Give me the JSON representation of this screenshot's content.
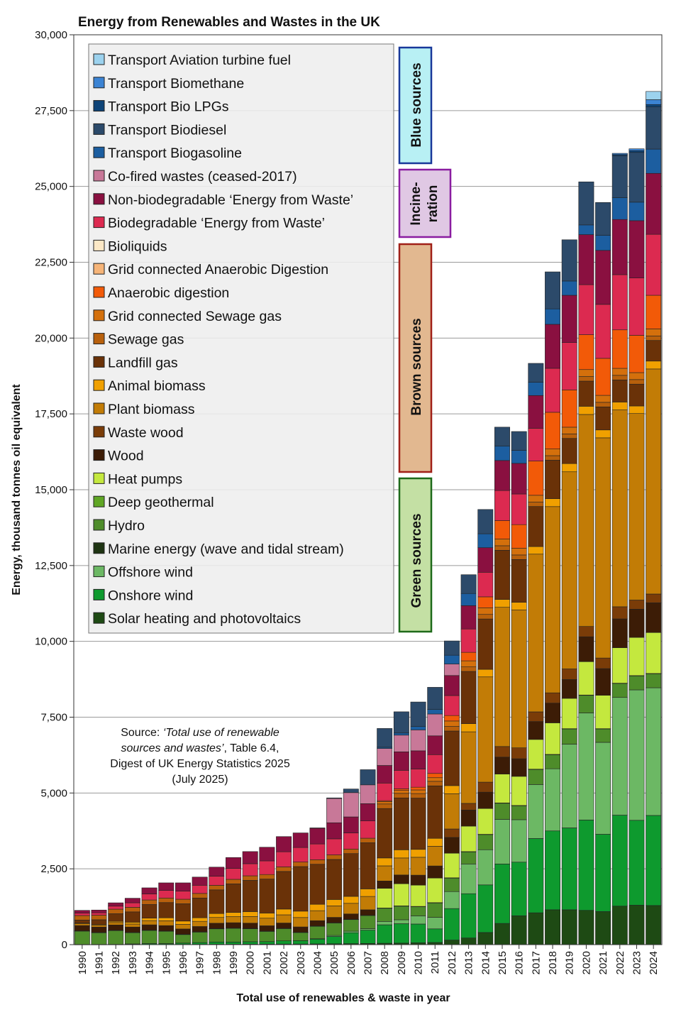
{
  "chart_data": {
    "type": "bar",
    "stacked": true,
    "title": "Energy from Renewables and Wastes in the UK",
    "xlabel": "Total use of renewables & waste in year",
    "ylabel": "Energy, thousand tonnes oil equivalent",
    "ylim": [
      0,
      30000
    ],
    "yticks": [
      0,
      2500,
      5000,
      7500,
      10000,
      12500,
      15000,
      17500,
      20000,
      22500,
      25000,
      27500,
      30000
    ],
    "ytick_labels": [
      "0",
      "2,500",
      "5,000",
      "7,500",
      "10,000",
      "12,500",
      "15,000",
      "17,500",
      "20,000",
      "22,500",
      "25,000",
      "27,500",
      "30,000"
    ],
    "grid": true,
    "legend_position": "top-left",
    "categories": [
      "1990",
      "1991",
      "1992",
      "1993",
      "1994",
      "1995",
      "1996",
      "1997",
      "1998",
      "1999",
      "2000",
      "2001",
      "2002",
      "2003",
      "2004",
      "2005",
      "2006",
      "2007",
      "2008",
      "2009",
      "2010",
      "2011",
      "2012",
      "2013",
      "2014",
      "2015",
      "2016",
      "2017",
      "2018",
      "2019",
      "2020",
      "2021",
      "2022",
      "2023",
      "2024"
    ],
    "series": [
      {
        "name": "Solar heating and photovoltaics",
        "color": "#1e4a14",
        "values": [
          5,
          5,
          5,
          6,
          7,
          8,
          9,
          10,
          12,
          13,
          15,
          17,
          19,
          21,
          24,
          28,
          33,
          38,
          45,
          50,
          60,
          70,
          150,
          220,
          400,
          700,
          950,
          1050,
          1150,
          1150,
          1130,
          1090,
          1270,
          1300,
          1290
        ]
      },
      {
        "name": "Onshore wind",
        "color": "#0e9a2e",
        "values": [
          1,
          1,
          3,
          18,
          30,
          28,
          42,
          57,
          75,
          73,
          81,
          82,
          105,
          110,
          165,
          240,
          360,
          440,
          610,
          640,
          620,
          450,
          1040,
          1460,
          1570,
          1960,
          1770,
          2450,
          2600,
          2700,
          2980,
          2550,
          3000,
          2800,
          2970
        ]
      },
      {
        "name": "Offshore wind",
        "color": "#6cb864",
        "values": [
          0,
          0,
          0,
          0,
          0,
          0,
          0,
          0,
          0,
          0,
          0,
          0,
          0,
          0,
          5,
          35,
          50,
          50,
          110,
          130,
          270,
          380,
          560,
          980,
          1160,
          1470,
          1400,
          1780,
          2050,
          2760,
          3530,
          3030,
          3880,
          4300,
          4210
        ]
      },
      {
        "name": "Marine energy (wave and tidal stream)",
        "color": "#1e3412",
        "values": [
          0,
          0,
          0,
          0,
          0,
          0,
          0,
          0,
          0,
          0,
          0,
          0,
          0,
          0,
          0,
          0,
          0,
          0,
          0,
          0,
          0,
          0,
          0,
          0,
          0,
          0,
          0,
          0,
          0,
          0,
          0,
          0,
          0,
          0,
          0
        ]
      },
      {
        "name": "Hydro",
        "color": "#4e8c2a",
        "values": [
          448,
          396,
          465,
          380,
          440,
          415,
          290,
          355,
          443,
          461,
          437,
          347,
          413,
          277,
          420,
          420,
          393,
          440,
          442,
          457,
          310,
          484,
          453,
          407,
          507,
          542,
          468,
          505,
          472,
          510,
          590,
          450,
          470,
          470,
          470
        ]
      },
      {
        "name": "Deep geothermal",
        "color": "#5fa624",
        "values": [
          1,
          1,
          1,
          1,
          1,
          1,
          1,
          1,
          1,
          1,
          1,
          1,
          1,
          1,
          1,
          1,
          1,
          1,
          1,
          1,
          1,
          1,
          1,
          1,
          1,
          1,
          1,
          1,
          1,
          1,
          1,
          1,
          1,
          1,
          1
        ]
      },
      {
        "name": "Heat pumps",
        "color": "#c4e83e",
        "values": [
          0,
          0,
          0,
          0,
          0,
          0,
          0,
          0,
          0,
          0,
          0,
          0,
          0,
          0,
          0,
          0,
          0,
          0,
          650,
          730,
          700,
          810,
          810,
          840,
          850,
          950,
          960,
          980,
          1040,
          1000,
          1100,
          1100,
          1170,
          1260,
          1350
        ]
      },
      {
        "name": "Wood",
        "color": "#3c1c06",
        "values": [
          175,
          175,
          175,
          175,
          175,
          175,
          175,
          175,
          175,
          175,
          175,
          175,
          175,
          175,
          175,
          175,
          175,
          180,
          240,
          290,
          330,
          400,
          520,
          530,
          540,
          560,
          580,
          590,
          650,
          620,
          820,
          880,
          950,
          930,
          980
        ]
      },
      {
        "name": "Waste wood",
        "color": "#7a3c08",
        "values": [
          0,
          0,
          0,
          0,
          0,
          0,
          0,
          0,
          0,
          0,
          0,
          0,
          0,
          0,
          0,
          0,
          0,
          0,
          0,
          0,
          0,
          0,
          280,
          220,
          330,
          350,
          360,
          320,
          340,
          350,
          340,
          350,
          400,
          300,
          290
        ]
      },
      {
        "name": "Plant biomass",
        "color": "#c27c06",
        "values": [
          60,
          58,
          80,
          100,
          140,
          160,
          150,
          170,
          190,
          200,
          220,
          250,
          270,
          310,
          330,
          380,
          350,
          440,
          500,
          560,
          590,
          650,
          1160,
          2360,
          3470,
          4590,
          4550,
          5200,
          6140,
          6500,
          6990,
          7260,
          6490,
          6150,
          7420
        ]
      },
      {
        "name": "Animal biomass",
        "color": "#f0a000",
        "values": [
          20,
          25,
          40,
          60,
          80,
          100,
          110,
          120,
          130,
          140,
          160,
          170,
          190,
          210,
          210,
          210,
          230,
          250,
          260,
          270,
          260,
          260,
          270,
          270,
          250,
          260,
          250,
          250,
          260,
          270,
          270,
          260,
          260,
          250,
          260
        ]
      },
      {
        "name": "Landfill gas",
        "color": "#6a3208",
        "values": [
          100,
          160,
          250,
          340,
          450,
          500,
          570,
          650,
          780,
          940,
          1030,
          1120,
          1240,
          1470,
          1320,
          1320,
          1410,
          1520,
          1630,
          1710,
          1690,
          1730,
          1800,
          1720,
          1660,
          1620,
          1410,
          1320,
          1270,
          830,
          830,
          760,
          730,
          720,
          680
        ]
      },
      {
        "name": "Sewage gas",
        "color": "#b8600c",
        "values": [
          150,
          150,
          150,
          150,
          150,
          150,
          150,
          150,
          150,
          150,
          150,
          150,
          150,
          150,
          150,
          150,
          150,
          150,
          150,
          150,
          150,
          150,
          150,
          150,
          150,
          150,
          150,
          150,
          150,
          150,
          150,
          150,
          150,
          150,
          150
        ]
      },
      {
        "name": "Grid connected Sewage gas",
        "color": "#d4700c",
        "values": [
          0,
          0,
          0,
          0,
          0,
          0,
          0,
          0,
          0,
          0,
          0,
          0,
          0,
          0,
          0,
          0,
          0,
          0,
          80,
          100,
          120,
          120,
          180,
          200,
          220,
          220,
          220,
          220,
          220,
          220,
          230,
          230,
          230,
          230,
          230
        ]
      },
      {
        "name": "Anaerobic digestion",
        "color": "#f25a08",
        "values": [
          0,
          0,
          0,
          0,
          0,
          0,
          0,
          0,
          0,
          0,
          0,
          0,
          0,
          0,
          0,
          0,
          0,
          0,
          30,
          50,
          90,
          140,
          180,
          280,
          360,
          610,
          780,
          1130,
          1210,
          1230,
          1150,
          1220,
          1270,
          1230,
          1110
        ]
      },
      {
        "name": "Grid connected Anaerobic Digestion",
        "color": "#f6b478",
        "values": [
          0,
          0,
          0,
          0,
          0,
          0,
          0,
          0,
          0,
          0,
          0,
          0,
          0,
          0,
          0,
          0,
          0,
          0,
          0,
          0,
          0,
          0,
          0,
          0,
          0,
          0,
          0,
          0,
          0,
          0,
          0,
          0,
          0,
          0,
          0
        ]
      },
      {
        "name": "Bioliquids",
        "color": "#fce8c6",
        "values": [
          0,
          0,
          0,
          0,
          0,
          0,
          0,
          0,
          0,
          0,
          0,
          0,
          0,
          0,
          0,
          0,
          0,
          0,
          0,
          0,
          0,
          0,
          0,
          0,
          0,
          0,
          0,
          0,
          0,
          0,
          0,
          0,
          0,
          0,
          0
        ]
      },
      {
        "name": "Biodegradable ‘Energy from Waste’",
        "color": "#dc2a50",
        "values": [
          80,
          80,
          100,
          150,
          200,
          250,
          270,
          270,
          300,
          360,
          400,
          450,
          500,
          480,
          520,
          530,
          530,
          570,
          580,
          610,
          600,
          620,
          660,
          770,
          810,
          990,
          1010,
          1080,
          1450,
          1560,
          1650,
          1780,
          1820,
          1890,
          2010
        ]
      },
      {
        "name": "Non-biodegradable ‘Energy from Waste’",
        "color": "#8a1040",
        "values": [
          90,
          90,
          110,
          150,
          200,
          250,
          270,
          270,
          300,
          360,
          400,
          450,
          500,
          480,
          520,
          530,
          530,
          570,
          580,
          610,
          600,
          620,
          660,
          770,
          810,
          990,
          1010,
          1080,
          1450,
          1560,
          1650,
          1780,
          1820,
          1890,
          2010
        ]
      },
      {
        "name": "Co-fired wastes (ceased-2017)",
        "color": "#c87898",
        "values": [
          0,
          0,
          0,
          0,
          0,
          0,
          0,
          0,
          0,
          0,
          0,
          0,
          0,
          0,
          0,
          800,
          800,
          620,
          560,
          550,
          690,
          720,
          380,
          0,
          0,
          0,
          0,
          0,
          0,
          0,
          0,
          0,
          0,
          0,
          0
        ]
      },
      {
        "name": "Transport Biogasoline",
        "color": "#1c5ea0",
        "values": [
          0,
          0,
          0,
          0,
          0,
          0,
          0,
          0,
          0,
          0,
          0,
          0,
          0,
          0,
          0,
          0,
          0,
          0,
          40,
          70,
          110,
          150,
          290,
          400,
          460,
          480,
          430,
          440,
          510,
          470,
          320,
          500,
          720,
          610,
          800
        ]
      },
      {
        "name": "Transport Biodiesel",
        "color": "#2c4a6a",
        "values": [
          0,
          0,
          0,
          0,
          0,
          0,
          0,
          0,
          0,
          0,
          0,
          0,
          0,
          0,
          10,
          20,
          120,
          500,
          620,
          700,
          810,
          730,
          470,
          620,
          800,
          620,
          620,
          620,
          1220,
          1360,
          1420,
          1080,
          1380,
          1640,
          1390
        ]
      },
      {
        "name": "Transport Bio LPGs",
        "color": "#0e4478",
        "values": [
          0,
          0,
          0,
          0,
          0,
          0,
          0,
          0,
          0,
          0,
          0,
          0,
          0,
          0,
          0,
          0,
          0,
          0,
          0,
          0,
          0,
          0,
          0,
          0,
          0,
          0,
          0,
          0,
          0,
          0,
          0,
          0,
          40,
          60,
          80
        ]
      },
      {
        "name": "Transport Biomethane",
        "color": "#3c84d4",
        "values": [
          0,
          0,
          0,
          0,
          0,
          0,
          0,
          0,
          0,
          0,
          0,
          0,
          0,
          0,
          0,
          0,
          0,
          0,
          0,
          0,
          0,
          0,
          0,
          0,
          0,
          0,
          0,
          0,
          0,
          0,
          0,
          0,
          40,
          60,
          160
        ]
      },
      {
        "name": "Transport Aviation turbine fuel",
        "color": "#9cd2ee",
        "values": [
          0,
          0,
          0,
          0,
          0,
          0,
          0,
          0,
          0,
          0,
          0,
          0,
          0,
          0,
          0,
          0,
          0,
          0,
          0,
          0,
          0,
          0,
          0,
          0,
          0,
          0,
          0,
          0,
          0,
          0,
          0,
          0,
          0,
          0,
          270
        ]
      }
    ],
    "groups": [
      {
        "label": "Blue sources",
        "fill": "#b8f0f4",
        "stroke": "#18389a"
      },
      {
        "label": "Incine-\nration",
        "fill": "#e0c8e4",
        "stroke": "#8a1ca0"
      },
      {
        "label": "Brown sources",
        "fill": "#e2b890",
        "stroke": "#a02018"
      },
      {
        "label": "Green sources",
        "fill": "#c4e0a4",
        "stroke": "#1e6a1a"
      }
    ],
    "annotation": {
      "line1": "Source: ",
      "line1_italic": "‘Total use of renewable",
      "line2_italic": "sources and wastes’",
      "line2": ", Table 6.4,",
      "line3": "Digest of UK Energy Statistics 2025",
      "line4": "(July 2025)"
    }
  }
}
